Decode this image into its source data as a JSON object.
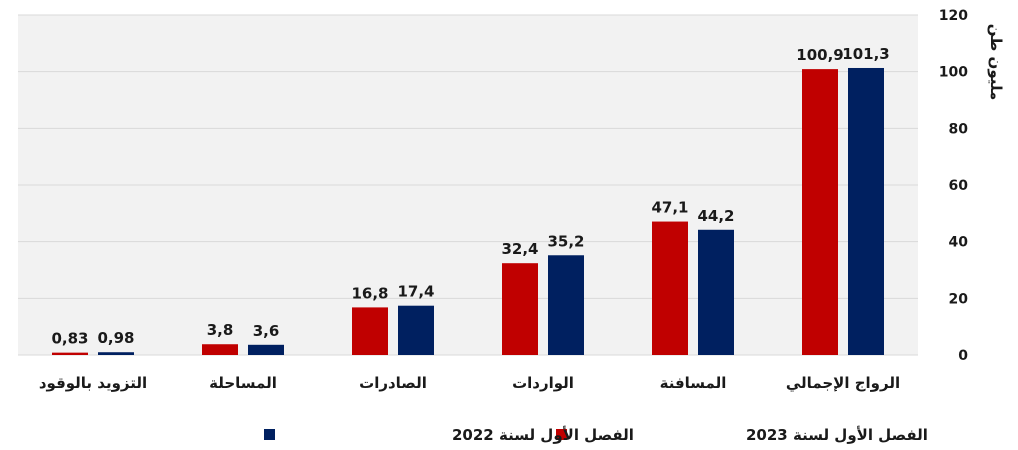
{
  "chart_data": {
    "type": "bar",
    "ylabel": "مليون طن",
    "ylim": [
      0,
      120
    ],
    "yticks": [
      0,
      20,
      40,
      60,
      80,
      100,
      120
    ],
    "y_axis_position": "right",
    "grid": true,
    "legend_position": "bottom",
    "categories": [
      "الرواج الإجمالي",
      "المسافنة",
      "الواردات",
      "الصادرات",
      "المساحلة",
      "التزويد بالوقود"
    ],
    "series": [
      {
        "name": "الفصل الأول لسنة 2023",
        "color": "#c00000",
        "values": [
          100.9,
          47.1,
          32.4,
          16.8,
          3.8,
          0.83
        ],
        "labels": [
          "100,9",
          "47,1",
          "32,4",
          "16,8",
          "3,8",
          "0,83"
        ]
      },
      {
        "name": "الفصل الأول لسنة 2022",
        "color": "#002060",
        "values": [
          101.3,
          44.2,
          35.2,
          17.4,
          3.6,
          0.98
        ],
        "labels": [
          "101,3",
          "44,2",
          "35,2",
          "17,4",
          "3,6",
          "0,98"
        ]
      }
    ]
  }
}
